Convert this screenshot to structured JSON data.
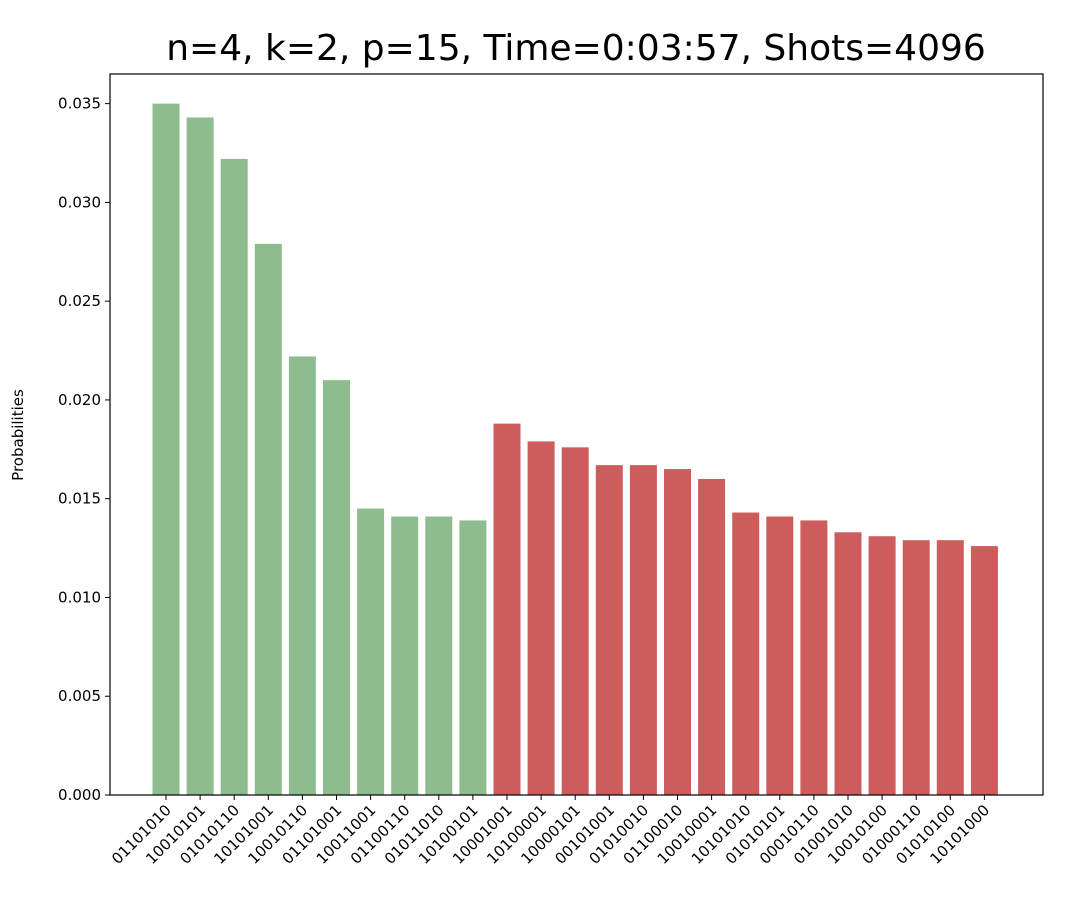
{
  "chart_data": {
    "type": "bar",
    "title": "n=4, k=2, p=15, Time=0:03:57, Shots=4096",
    "xlabel": "",
    "ylabel": "Probabilities",
    "ylim": [
      0,
      0.0365
    ],
    "yticks": [
      0.0,
      0.005,
      0.01,
      0.015,
      0.02,
      0.025,
      0.03,
      0.035
    ],
    "ytick_labels": [
      "0.000",
      "0.005",
      "0.010",
      "0.015",
      "0.020",
      "0.025",
      "0.030",
      "0.035"
    ],
    "grid": false,
    "categories": [
      "01101010",
      "10010101",
      "01010110",
      "10101001",
      "10010110",
      "01101001",
      "10011001",
      "01100110",
      "01011010",
      "10100101",
      "10001001",
      "10100001",
      "10000101",
      "00101001",
      "01010010",
      "01100010",
      "10010001",
      "10101010",
      "01010101",
      "00010110",
      "01001010",
      "10010100",
      "01000110",
      "01010100",
      "10101000"
    ],
    "values": [
      0.035,
      0.0343,
      0.0322,
      0.0279,
      0.0222,
      0.021,
      0.0145,
      0.0141,
      0.0141,
      0.0139,
      0.0188,
      0.0179,
      0.0176,
      0.0167,
      0.0167,
      0.0165,
      0.016,
      0.0143,
      0.0141,
      0.0139,
      0.0133,
      0.0131,
      0.0129,
      0.0129,
      0.0126
    ],
    "colors": [
      "#8fbc8f",
      "#8fbc8f",
      "#8fbc8f",
      "#8fbc8f",
      "#8fbc8f",
      "#8fbc8f",
      "#8fbc8f",
      "#8fbc8f",
      "#8fbc8f",
      "#8fbc8f",
      "#cd5c5c",
      "#cd5c5c",
      "#cd5c5c",
      "#cd5c5c",
      "#cd5c5c",
      "#cd5c5c",
      "#cd5c5c",
      "#cd5c5c",
      "#cd5c5c",
      "#cd5c5c",
      "#cd5c5c",
      "#cd5c5c",
      "#cd5c5c",
      "#cd5c5c",
      "#cd5c5c"
    ]
  }
}
